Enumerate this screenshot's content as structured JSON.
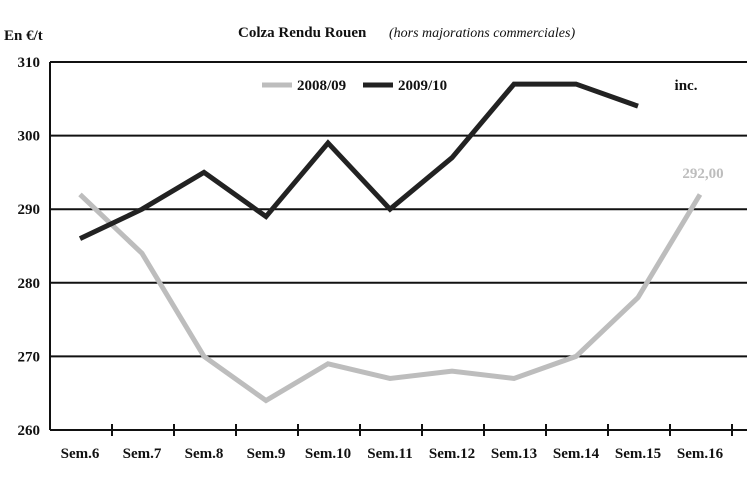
{
  "chart_data": {
    "type": "line",
    "title": "Colza Rendu Rouen",
    "subtitle": "(hors majorations commerciales)",
    "ylabel": "En €/t",
    "xlabel": "",
    "ylim": [
      260,
      310
    ],
    "yticks": [
      260,
      270,
      280,
      290,
      300,
      310
    ],
    "grid": true,
    "legend_position": "top-center",
    "categories": [
      "Sem.6",
      "Sem.7",
      "Sem.8",
      "Sem.9",
      "Sem.10",
      "Sem.11",
      "Sem.12",
      "Sem.13",
      "Sem.14",
      "Sem.15",
      "Sem.16"
    ],
    "series": [
      {
        "name": "2008/09",
        "color": "#bdbdbd",
        "values": [
          292,
          284,
          270,
          264,
          269,
          267,
          268,
          267,
          270,
          278,
          292
        ]
      },
      {
        "name": "2009/10",
        "color": "#222222",
        "values": [
          286,
          290,
          295,
          289,
          299,
          290,
          297,
          307,
          307,
          304,
          null
        ]
      }
    ],
    "annotations": [
      {
        "text": "292,00",
        "category": "Sem.16",
        "series": "2008/09",
        "color": "#bdbdbd"
      },
      {
        "text": "inc.",
        "category": "Sem.15",
        "series": "2009/10",
        "color": "#111111"
      }
    ]
  }
}
